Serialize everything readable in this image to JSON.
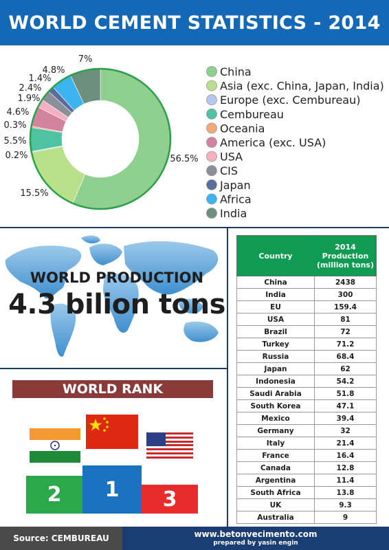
{
  "header": {
    "title": "WORLD CEMENT STATISTICS - 2014"
  },
  "chart_data": [
    {
      "type": "pie",
      "title": "",
      "slices": [
        {
          "name": "China",
          "value": 56.5,
          "label": "56.5%",
          "color": "#8fcf8f"
        },
        {
          "name": "Asia (exc. China, Japan, India)",
          "value": 15.5,
          "label": "15.5%",
          "color": "#b9e08a"
        },
        {
          "name": "Europe (exc. Cembureau)",
          "value": 0.2,
          "label": "0.2%",
          "color": "#b5c8f0"
        },
        {
          "name": "Cembureau",
          "value": 5.5,
          "label": "5.5%",
          "color": "#4fc2a4"
        },
        {
          "name": "Oceania",
          "value": 0.3,
          "label": "0.3%",
          "color": "#f5a77a"
        },
        {
          "name": "America (exc. USA)",
          "value": 4.6,
          "label": "4.6%",
          "color": "#d4839e"
        },
        {
          "name": "USA",
          "value": 1.9,
          "label": "1.9%",
          "color": "#f4b0c0"
        },
        {
          "name": "CIS",
          "value": 2.4,
          "label": "2.4%",
          "color": "#8a8f99"
        },
        {
          "name": "Japan",
          "value": 1.4,
          "label": "1.4%",
          "color": "#5a6e9e"
        },
        {
          "name": "Africa",
          "value": 4.8,
          "label": "4.8%",
          "color": "#3cb4f0"
        },
        {
          "name": "India",
          "value": 7.0,
          "label": "7%",
          "color": "#6d8f7e"
        }
      ],
      "legend_position": "right"
    },
    {
      "type": "table",
      "columns": [
        "Country",
        "2014 Production (million tons)"
      ],
      "column_header_lines": [
        "2014",
        "Production",
        "(million tons)"
      ],
      "rows": [
        [
          "China",
          "2438"
        ],
        [
          "India",
          "300"
        ],
        [
          "EU",
          "159.4"
        ],
        [
          "USA",
          "81"
        ],
        [
          "Brazil",
          "72"
        ],
        [
          "Turkey",
          "71.2"
        ],
        [
          "Russia",
          "68.4"
        ],
        [
          "Japan",
          "62"
        ],
        [
          "Indonesia",
          "54.2"
        ],
        [
          "Saudi Arabia",
          "51.8"
        ],
        [
          "South Korea",
          "47.1"
        ],
        [
          "Mexico",
          "39.4"
        ],
        [
          "Germany",
          "32"
        ],
        [
          "Italy",
          "21.4"
        ],
        [
          "France",
          "16.4"
        ],
        [
          "Canada",
          "12.8"
        ],
        [
          "Argentina",
          "11.4"
        ],
        [
          "South Africa",
          "13.8"
        ],
        [
          "UK",
          "9.3"
        ],
        [
          "Australia",
          "9"
        ]
      ]
    }
  ],
  "production": {
    "title": "WORLD PRODUCTION",
    "value": "4.3 bilion tons"
  },
  "rank": {
    "title": "WORLD RANK",
    "places": [
      {
        "number": "2",
        "country": "India",
        "color": "#2aa84a"
      },
      {
        "number": "1",
        "country": "China",
        "color": "#1a73c0"
      },
      {
        "number": "3",
        "country": "USA",
        "color": "#e82c2c"
      }
    ]
  },
  "footer": {
    "source": "Source: CEMBUREAU",
    "url": "www.betonvecimento.com",
    "prepared_by": "prepared by yasin engin"
  }
}
